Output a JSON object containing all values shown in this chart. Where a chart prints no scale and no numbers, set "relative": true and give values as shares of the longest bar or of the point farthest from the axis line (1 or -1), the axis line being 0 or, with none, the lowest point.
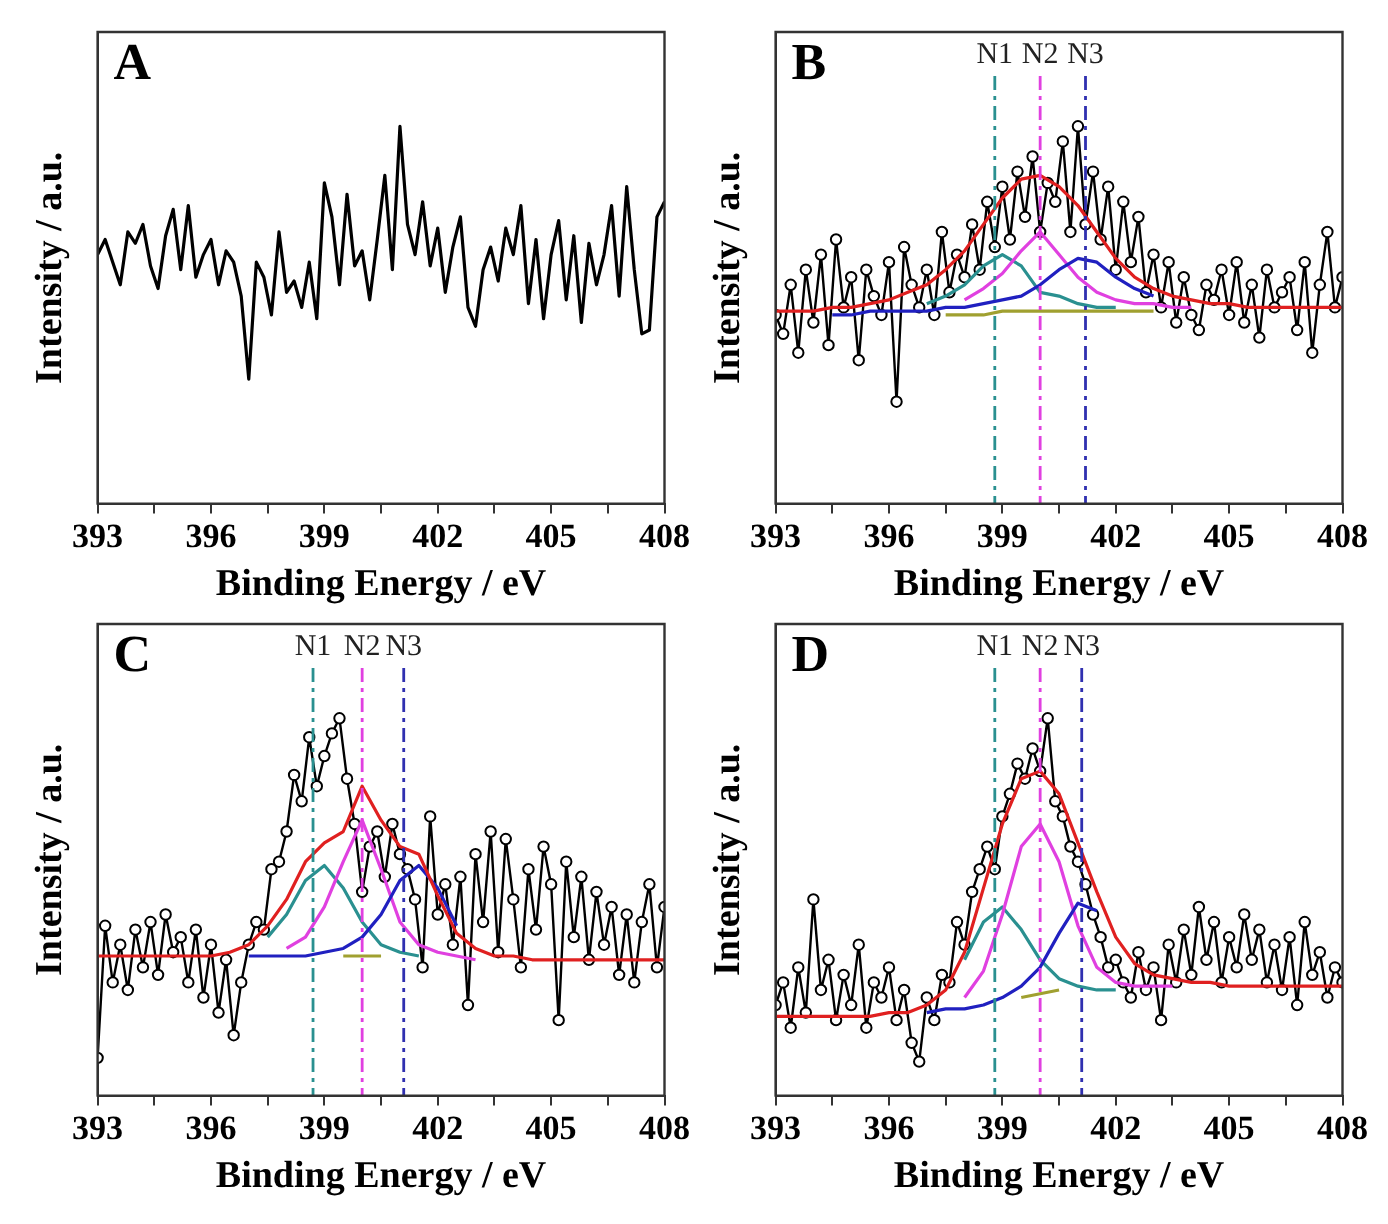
{
  "chart_data": [
    {
      "type": "line",
      "relative": true,
      "xlabel": "Binding Energy / eV",
      "ylabel": "Intensity / a.u.",
      "annotations": [
        "A"
      ],
      "legend": false,
      "xlim": [
        393,
        408
      ],
      "xticks": [
        393,
        {
          "value": 394.5,
          "label": null
        },
        396,
        {
          "value": 397.5,
          "label": null
        },
        399,
        {
          "value": 400.5,
          "label": null
        },
        402,
        {
          "value": 403.5,
          "label": null
        },
        405,
        {
          "value": 406.5,
          "label": null
        },
        408
      ],
      "x": [
        393,
        393.2,
        393.4,
        393.6,
        393.8,
        394,
        394.2,
        394.4,
        394.6,
        394.8,
        395,
        395.2,
        395.4,
        395.6,
        395.8,
        396,
        396.2,
        396.4,
        396.6,
        396.8,
        397,
        397.2,
        397.4,
        397.6,
        397.8,
        398,
        398.2,
        398.4,
        398.6,
        398.8,
        399,
        399.2,
        399.4,
        399.6,
        399.8,
        400,
        400.2,
        400.4,
        400.6,
        400.8,
        401,
        401.2,
        401.4,
        401.6,
        401.8,
        402,
        402.2,
        402.4,
        402.6,
        402.8,
        403,
        403.2,
        403.4,
        403.6,
        403.8,
        404,
        404.2,
        404.4,
        404.6,
        404.8,
        405,
        405.2,
        405.4,
        405.6,
        405.8,
        406,
        406.2,
        406.4,
        406.6,
        406.8,
        407,
        407.2,
        407.4,
        407.6,
        407.8,
        408
      ],
      "series": [
        {
          "color": "#000000",
          "marker": "none",
          "values": [
            0.66,
            0.7,
            0.64,
            0.58,
            0.72,
            0.69,
            0.74,
            0.63,
            0.57,
            0.71,
            0.78,
            0.62,
            0.79,
            0.6,
            0.66,
            0.7,
            0.58,
            0.67,
            0.64,
            0.55,
            0.33,
            0.64,
            0.6,
            0.5,
            0.72,
            0.56,
            0.59,
            0.52,
            0.64,
            0.49,
            0.85,
            0.76,
            0.58,
            0.82,
            0.63,
            0.67,
            0.54,
            0.7,
            0.87,
            0.62,
            1.0,
            0.74,
            0.66,
            0.8,
            0.63,
            0.73,
            0.56,
            0.68,
            0.76,
            0.52,
            0.47,
            0.62,
            0.68,
            0.59,
            0.73,
            0.66,
            0.79,
            0.53,
            0.7,
            0.49,
            0.66,
            0.75,
            0.54,
            0.71,
            0.48,
            0.69,
            0.58,
            0.66,
            0.79,
            0.55,
            0.84,
            0.62,
            0.45,
            0.46,
            0.76,
            0.8
          ]
        }
      ]
    },
    {
      "type": "line",
      "relative": true,
      "xlabel": "Binding Energy / eV",
      "ylabel": "Intensity / a.u.",
      "annotations": [
        "B"
      ],
      "legend": false,
      "xlim": [
        393,
        408
      ],
      "xticks": [
        393,
        {
          "value": 394.5,
          "label": null
        },
        396,
        {
          "value": 397.5,
          "label": null
        },
        399,
        {
          "value": 400.5,
          "label": null
        },
        402,
        {
          "value": 403.5,
          "label": null
        },
        405,
        {
          "value": 406.5,
          "label": null
        },
        408
      ],
      "ref_lines": [
        {
          "axis": "x",
          "value": 398.8,
          "label": "N1",
          "color": "#2a9090",
          "line_style": "dashed"
        },
        {
          "axis": "x",
          "value": 400,
          "label": "N2",
          "color": "#e040e0",
          "line_style": "dashed"
        },
        {
          "axis": "x",
          "value": 401.2,
          "label": "N3",
          "color": "#3030b0",
          "line_style": "dashed"
        }
      ],
      "x": [
        393,
        393.2,
        393.4,
        393.6,
        393.8,
        394,
        394.2,
        394.4,
        394.6,
        394.8,
        395,
        395.2,
        395.4,
        395.6,
        395.8,
        396,
        396.2,
        396.4,
        396.6,
        396.8,
        397,
        397.2,
        397.4,
        397.6,
        397.8,
        398,
        398.2,
        398.4,
        398.6,
        398.8,
        399,
        399.2,
        399.4,
        399.6,
        399.8,
        400,
        400.2,
        400.4,
        400.6,
        400.8,
        401,
        401.2,
        401.4,
        401.6,
        401.8,
        402,
        402.2,
        402.4,
        402.6,
        402.8,
        403,
        403.2,
        403.4,
        403.6,
        403.8,
        404,
        404.2,
        404.4,
        404.6,
        404.8,
        405,
        405.2,
        405.4,
        405.6,
        405.8,
        406,
        406.2,
        406.4,
        406.6,
        406.8,
        407,
        407.2,
        407.4,
        407.6,
        407.8,
        408
      ],
      "series": [
        {
          "color": "#000000",
          "marker": "circle",
          "values": [
            0.5,
            0.45,
            0.58,
            0.4,
            0.62,
            0.48,
            0.66,
            0.42,
            0.7,
            0.52,
            0.6,
            0.38,
            0.62,
            0.55,
            0.5,
            0.64,
            0.27,
            0.68,
            0.58,
            0.52,
            0.62,
            0.5,
            0.72,
            0.56,
            0.66,
            0.6,
            0.74,
            0.62,
            0.8,
            0.68,
            0.84,
            0.7,
            0.88,
            0.76,
            0.92,
            0.72,
            0.85,
            0.8,
            0.96,
            0.72,
            1.0,
            0.74,
            0.88,
            0.7,
            0.84,
            0.62,
            0.8,
            0.64,
            0.76,
            0.56,
            0.66,
            0.52,
            0.64,
            0.48,
            0.6,
            0.5,
            0.46,
            0.58,
            0.54,
            0.62,
            0.5,
            0.64,
            0.48,
            0.58,
            0.44,
            0.62,
            0.52,
            0.56,
            0.6,
            0.46,
            0.64,
            0.4,
            0.58,
            0.72,
            0.52,
            0.6
          ]
        },
        {
          "color": "#a0a030",
          "marker": "none",
          "x": [
            397.5,
            398,
            398.5,
            399,
            399.5,
            400,
            400.5,
            401,
            401.5,
            402,
            402.5,
            403
          ],
          "values": [
            0.5,
            0.5,
            0.5,
            0.51,
            0.51,
            0.51,
            0.51,
            0.51,
            0.51,
            0.51,
            0.51,
            0.51
          ]
        },
        {
          "color": "#2a9090",
          "marker": "none",
          "x": [
            397,
            397.5,
            398,
            398.5,
            399,
            399.5,
            400,
            400.5,
            401,
            401.5,
            402
          ],
          "values": [
            0.53,
            0.55,
            0.58,
            0.63,
            0.66,
            0.63,
            0.56,
            0.55,
            0.53,
            0.52,
            0.52
          ]
        },
        {
          "color": "#e040e0",
          "marker": "none",
          "x": [
            398,
            398.5,
            399,
            399.5,
            400,
            400.5,
            401,
            401.5,
            402,
            402.5,
            403,
            403.5,
            404
          ],
          "values": [
            0.54,
            0.57,
            0.61,
            0.67,
            0.72,
            0.66,
            0.6,
            0.56,
            0.54,
            0.53,
            0.53,
            0.52,
            0.52
          ]
        },
        {
          "color": "#2020c0",
          "marker": "none",
          "x": [
            394.5,
            395,
            395.5,
            396,
            396.5,
            397,
            397.5,
            398,
            398.5,
            399,
            399.5,
            400,
            400.5,
            401,
            401.5,
            402,
            402.5,
            403
          ],
          "values": [
            0.5,
            0.5,
            0.51,
            0.51,
            0.51,
            0.51,
            0.52,
            0.52,
            0.53,
            0.54,
            0.55,
            0.58,
            0.62,
            0.65,
            0.64,
            0.6,
            0.57,
            0.55
          ]
        },
        {
          "color": "#e02020",
          "marker": "none",
          "x": [
            393,
            393.5,
            394,
            394.5,
            395,
            395.5,
            396,
            396.5,
            397,
            397.5,
            398,
            398.5,
            399,
            399.5,
            400,
            400.5,
            401,
            401.5,
            402,
            402.5,
            403,
            403.5,
            404,
            404.5,
            405,
            405.5,
            406,
            406.5,
            407,
            407.5,
            408
          ],
          "values": [
            0.51,
            0.51,
            0.51,
            0.52,
            0.52,
            0.53,
            0.54,
            0.56,
            0.58,
            0.62,
            0.67,
            0.74,
            0.81,
            0.86,
            0.87,
            0.84,
            0.79,
            0.72,
            0.65,
            0.6,
            0.57,
            0.55,
            0.54,
            0.53,
            0.53,
            0.52,
            0.52,
            0.52,
            0.52,
            0.52,
            0.52
          ]
        }
      ]
    },
    {
      "type": "line",
      "relative": true,
      "xlabel": "Binding Energy / eV",
      "ylabel": "Intensity / a.u.",
      "annotations": [
        "C"
      ],
      "legend": false,
      "xlim": [
        393,
        408
      ],
      "xticks": [
        393,
        {
          "value": 394.5,
          "label": null
        },
        396,
        {
          "value": 397.5,
          "label": null
        },
        399,
        {
          "value": 400.5,
          "label": null
        },
        402,
        {
          "value": 403.5,
          "label": null
        },
        405,
        {
          "value": 406.5,
          "label": null
        },
        408
      ],
      "ref_lines": [
        {
          "axis": "x",
          "value": 398.7,
          "label": "N1",
          "color": "#2a9090",
          "line_style": "dashed"
        },
        {
          "axis": "x",
          "value": 400,
          "label": "N2",
          "color": "#e040e0",
          "line_style": "dashed"
        },
        {
          "axis": "x",
          "value": 401.1,
          "label": "N3",
          "color": "#3030b0",
          "line_style": "dashed"
        }
      ],
      "x": [
        393,
        393.2,
        393.4,
        393.6,
        393.8,
        394,
        394.2,
        394.4,
        394.6,
        394.8,
        395,
        395.2,
        395.4,
        395.6,
        395.8,
        396,
        396.2,
        396.4,
        396.6,
        396.8,
        397,
        397.2,
        397.4,
        397.6,
        397.8,
        398,
        398.2,
        398.4,
        398.6,
        398.8,
        399,
        399.2,
        399.4,
        399.6,
        399.8,
        400,
        400.2,
        400.4,
        400.6,
        400.8,
        401,
        401.2,
        401.4,
        401.6,
        401.8,
        402,
        402.2,
        402.4,
        402.6,
        402.8,
        403,
        403.2,
        403.4,
        403.6,
        403.8,
        404,
        404.2,
        404.4,
        404.6,
        404.8,
        405,
        405.2,
        405.4,
        405.6,
        405.8,
        406,
        406.2,
        406.4,
        406.6,
        406.8,
        407,
        407.2,
        407.4,
        407.6,
        407.8,
        408
      ],
      "series": [
        {
          "color": "#000000",
          "marker": "circle",
          "values": [
            0.1,
            0.45,
            0.3,
            0.4,
            0.28,
            0.44,
            0.34,
            0.46,
            0.32,
            0.48,
            0.38,
            0.42,
            0.3,
            0.44,
            0.26,
            0.4,
            0.22,
            0.36,
            0.16,
            0.3,
            0.4,
            0.46,
            0.44,
            0.6,
            0.62,
            0.7,
            0.85,
            0.78,
            0.95,
            0.82,
            0.9,
            0.96,
            1.0,
            0.84,
            0.72,
            0.54,
            0.66,
            0.7,
            0.58,
            0.72,
            0.64,
            0.6,
            0.52,
            0.34,
            0.74,
            0.48,
            0.56,
            0.4,
            0.58,
            0.24,
            0.64,
            0.46,
            0.7,
            0.38,
            0.68,
            0.52,
            0.34,
            0.6,
            0.44,
            0.66,
            0.56,
            0.2,
            0.62,
            0.42,
            0.58,
            0.36,
            0.54,
            0.4,
            0.5,
            0.32,
            0.48,
            0.3,
            0.46,
            0.56,
            0.34,
            0.5
          ]
        },
        {
          "color": "#a0a030",
          "marker": "none",
          "x": [
            399.5,
            400,
            400.5
          ],
          "values": [
            0.37,
            0.37,
            0.37
          ]
        },
        {
          "color": "#2a9090",
          "marker": "none",
          "x": [
            397.5,
            398,
            398.5,
            399,
            399.5,
            400,
            400.5,
            401,
            401.5
          ],
          "values": [
            0.42,
            0.48,
            0.57,
            0.61,
            0.55,
            0.46,
            0.4,
            0.38,
            0.37
          ]
        },
        {
          "color": "#e040e0",
          "marker": "none",
          "x": [
            398,
            398.5,
            399,
            399.5,
            400,
            400.5,
            401,
            401.5,
            402,
            402.5,
            403
          ],
          "values": [
            0.39,
            0.42,
            0.5,
            0.62,
            0.73,
            0.6,
            0.46,
            0.4,
            0.38,
            0.37,
            0.36
          ]
        },
        {
          "color": "#2020c0",
          "marker": "none",
          "x": [
            397,
            397.5,
            398,
            398.5,
            399,
            399.5,
            400,
            400.5,
            401,
            401.5,
            402,
            402.5
          ],
          "values": [
            0.37,
            0.37,
            0.37,
            0.37,
            0.38,
            0.39,
            0.42,
            0.48,
            0.57,
            0.61,
            0.55,
            0.45
          ]
        },
        {
          "color": "#e02020",
          "marker": "none",
          "x": [
            393,
            393.5,
            394,
            394.5,
            395,
            395.5,
            396,
            396.5,
            397,
            397.5,
            398,
            398.5,
            399,
            399.5,
            400,
            400.5,
            401,
            401.5,
            402,
            402.5,
            403,
            403.5,
            404,
            404.5,
            405,
            405.5,
            406,
            406.5,
            407,
            407.5,
            408
          ],
          "values": [
            0.37,
            0.37,
            0.37,
            0.37,
            0.37,
            0.37,
            0.37,
            0.38,
            0.4,
            0.45,
            0.52,
            0.62,
            0.67,
            0.7,
            0.82,
            0.73,
            0.66,
            0.64,
            0.53,
            0.43,
            0.39,
            0.37,
            0.37,
            0.36,
            0.36,
            0.36,
            0.36,
            0.36,
            0.36,
            0.36,
            0.36
          ]
        }
      ]
    },
    {
      "type": "line",
      "relative": true,
      "xlabel": "Binding Energy / eV",
      "ylabel": "Intensity / a.u.",
      "annotations": [
        "D"
      ],
      "legend": false,
      "xlim": [
        393,
        408
      ],
      "xticks": [
        393,
        {
          "value": 394.5,
          "label": null
        },
        396,
        {
          "value": 397.5,
          "label": null
        },
        399,
        {
          "value": 400.5,
          "label": null
        },
        402,
        {
          "value": 403.5,
          "label": null
        },
        405,
        {
          "value": 406.5,
          "label": null
        },
        408
      ],
      "ref_lines": [
        {
          "axis": "x",
          "value": 398.8,
          "label": "N1",
          "color": "#2a9090",
          "line_style": "dashed"
        },
        {
          "axis": "x",
          "value": 400,
          "label": "N2",
          "color": "#e040e0",
          "line_style": "dashed"
        },
        {
          "axis": "x",
          "value": 401.1,
          "label": "N3",
          "color": "#3030b0",
          "line_style": "dashed"
        }
      ],
      "x": [
        393,
        393.2,
        393.4,
        393.6,
        393.8,
        394,
        394.2,
        394.4,
        394.6,
        394.8,
        395,
        395.2,
        395.4,
        395.6,
        395.8,
        396,
        396.2,
        396.4,
        396.6,
        396.8,
        397,
        397.2,
        397.4,
        397.6,
        397.8,
        398,
        398.2,
        398.4,
        398.6,
        398.8,
        399,
        399.2,
        399.4,
        399.6,
        399.8,
        400,
        400.2,
        400.4,
        400.6,
        400.8,
        401,
        401.2,
        401.4,
        401.6,
        401.8,
        402,
        402.2,
        402.4,
        402.6,
        402.8,
        403,
        403.2,
        403.4,
        403.6,
        403.8,
        404,
        404.2,
        404.4,
        404.6,
        404.8,
        405,
        405.2,
        405.4,
        405.6,
        405.8,
        406,
        406.2,
        406.4,
        406.6,
        406.8,
        407,
        407.2,
        407.4,
        407.6,
        407.8,
        408
      ],
      "series": [
        {
          "color": "#000000",
          "marker": "circle",
          "values": [
            0.24,
            0.3,
            0.18,
            0.34,
            0.22,
            0.52,
            0.28,
            0.36,
            0.2,
            0.32,
            0.24,
            0.4,
            0.18,
            0.3,
            0.26,
            0.34,
            0.2,
            0.28,
            0.14,
            0.09,
            0.26,
            0.2,
            0.32,
            0.3,
            0.46,
            0.4,
            0.54,
            0.6,
            0.66,
            0.6,
            0.74,
            0.8,
            0.88,
            0.84,
            0.92,
            0.86,
            1.0,
            0.78,
            0.74,
            0.66,
            0.62,
            0.56,
            0.48,
            0.42,
            0.34,
            0.36,
            0.3,
            0.26,
            0.38,
            0.28,
            0.34,
            0.2,
            0.4,
            0.3,
            0.44,
            0.32,
            0.5,
            0.36,
            0.46,
            0.3,
            0.42,
            0.34,
            0.48,
            0.36,
            0.44,
            0.3,
            0.4,
            0.28,
            0.42,
            0.24,
            0.46,
            0.32,
            0.38,
            0.26,
            0.34,
            0.3
          ]
        },
        {
          "color": "#a0a030",
          "marker": "none",
          "x": [
            399.5,
            400,
            400.5
          ],
          "values": [
            0.26,
            0.27,
            0.28
          ]
        },
        {
          "color": "#2a9090",
          "marker": "none",
          "x": [
            398,
            398.5,
            399,
            399.5,
            400,
            400.5,
            401,
            401.5,
            402
          ],
          "values": [
            0.36,
            0.46,
            0.5,
            0.44,
            0.36,
            0.31,
            0.29,
            0.28,
            0.28
          ]
        },
        {
          "color": "#e040e0",
          "marker": "none",
          "x": [
            398,
            398.5,
            399,
            399.5,
            400,
            400.5,
            401,
            401.5,
            402,
            402.5,
            403,
            403.5
          ],
          "values": [
            0.26,
            0.33,
            0.48,
            0.66,
            0.72,
            0.62,
            0.45,
            0.34,
            0.3,
            0.29,
            0.29,
            0.29
          ]
        },
        {
          "color": "#2020c0",
          "marker": "none",
          "x": [
            397,
            397.5,
            398,
            398.5,
            399,
            399.5,
            400,
            400.5,
            401,
            401.5
          ],
          "values": [
            0.22,
            0.23,
            0.23,
            0.24,
            0.26,
            0.29,
            0.34,
            0.43,
            0.51,
            0.49
          ]
        },
        {
          "color": "#e02020",
          "marker": "none",
          "x": [
            393,
            393.5,
            394,
            394.5,
            395,
            395.5,
            396,
            396.5,
            397,
            397.5,
            398,
            398.5,
            399,
            399.5,
            400,
            400.5,
            401,
            401.5,
            402,
            402.5,
            403,
            403.5,
            404,
            404.5,
            405,
            405.5,
            406,
            406.5,
            407,
            407.5,
            408
          ],
          "values": [
            0.21,
            0.21,
            0.21,
            0.21,
            0.21,
            0.21,
            0.22,
            0.22,
            0.24,
            0.28,
            0.38,
            0.55,
            0.72,
            0.84,
            0.86,
            0.8,
            0.67,
            0.54,
            0.42,
            0.35,
            0.32,
            0.31,
            0.3,
            0.3,
            0.29,
            0.29,
            0.29,
            0.29,
            0.29,
            0.29,
            0.29
          ]
        }
      ]
    }
  ]
}
